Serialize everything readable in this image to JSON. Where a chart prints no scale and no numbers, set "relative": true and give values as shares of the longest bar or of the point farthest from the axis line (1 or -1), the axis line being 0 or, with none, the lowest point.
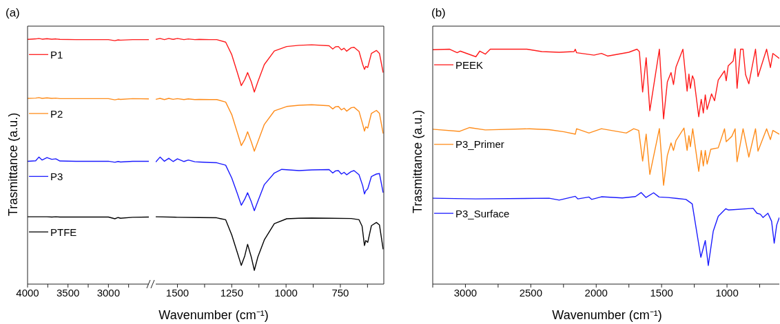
{
  "chart_data": [
    {
      "type": "line",
      "title": "(a)",
      "ylabel": "Trasmittance (a.u.)",
      "relative": true,
      "legend": "left",
      "xlim": [
        4000,
        2500
      ],
      "xticks": [
        4000,
        {
          "value": 3750,
          "label": null
        },
        3500,
        {
          "value": 3250,
          "label": null
        },
        3000,
        {
          "value": 2750,
          "label": null
        }
      ],
      "series": [
        {
          "name": "P1",
          "color": "#ff1a1a",
          "x": [
            4000,
            3900,
            3860,
            3820,
            3760,
            3700,
            3650,
            3600,
            3400,
            3200,
            3000,
            2920,
            2880,
            2850,
            2700,
            2500
          ],
          "values": [
            0.996,
            0.998,
            1.0,
            0.997,
            0.999,
            0.997,
            0.998,
            0.996,
            0.995,
            0.995,
            0.995,
            0.991,
            0.994,
            0.993,
            0.995,
            0.995
          ]
        },
        {
          "name": "P2",
          "color": "#ff8c1a",
          "x": [
            4000,
            3900,
            3860,
            3820,
            3760,
            3700,
            3650,
            3600,
            3400,
            3200,
            3000,
            2920,
            2880,
            2850,
            2700,
            2500
          ],
          "values": [
            0.756,
            0.757,
            0.759,
            0.756,
            0.758,
            0.756,
            0.757,
            0.755,
            0.755,
            0.755,
            0.755,
            0.75,
            0.753,
            0.752,
            0.755,
            0.754
          ]
        },
        {
          "name": "P3",
          "color": "#1a1aff",
          "x": [
            4000,
            3900,
            3860,
            3820,
            3760,
            3700,
            3650,
            3600,
            3400,
            3200,
            3000,
            2920,
            2880,
            2850,
            2700,
            2500
          ],
          "values": [
            0.5,
            0.502,
            0.517,
            0.505,
            0.515,
            0.508,
            0.51,
            0.501,
            0.5,
            0.5,
            0.5,
            0.496,
            0.499,
            0.497,
            0.5,
            0.5
          ]
        },
        {
          "name": "PTFE",
          "color": "#000000",
          "x": [
            4000,
            3900,
            3860,
            3820,
            3760,
            3700,
            3650,
            3600,
            3400,
            3200,
            3000,
            2920,
            2880,
            2850,
            2700,
            2500
          ],
          "values": [
            0.274,
            0.274,
            0.274,
            0.274,
            0.274,
            0.273,
            0.274,
            0.273,
            0.273,
            0.273,
            0.273,
            0.266,
            0.271,
            0.268,
            0.272,
            0.273
          ]
        }
      ]
    },
    {
      "type": "line",
      "xlabel": "Wavenumber (cm⁻¹)",
      "relative": true,
      "xlim": [
        1600,
        550
      ],
      "xticks": [
        1500,
        {
          "value": 1375,
          "label": null
        },
        1250,
        {
          "value": 1125,
          "label": null
        },
        1000,
        {
          "value": 875,
          "label": null
        },
        750,
        {
          "value": 625,
          "label": null
        }
      ],
      "series": [
        {
          "color": "#ff1a1a",
          "x": [
            1600,
            1580,
            1560,
            1540,
            1520,
            1500,
            1470,
            1450,
            1420,
            1400,
            1350,
            1319,
            1278,
            1250,
            1225,
            1206,
            1190,
            1177,
            1160,
            1146,
            1130,
            1100,
            1054,
            997,
            940,
            882,
            802,
            785,
            772,
            759,
            745,
            733,
            721,
            700,
            687,
            664,
            647,
            639,
            633,
            624,
            607,
            584,
            570,
            553
          ],
          "values": [
            0.996,
            1.0,
            0.995,
            1.0,
            0.996,
            1.0,
            0.995,
            0.998,
            0.995,
            0.996,
            0.995,
            0.995,
            0.985,
            0.934,
            0.863,
            0.808,
            0.833,
            0.861,
            0.823,
            0.782,
            0.823,
            0.894,
            0.949,
            0.967,
            0.972,
            0.974,
            0.97,
            0.957,
            0.966,
            0.967,
            0.953,
            0.96,
            0.948,
            0.962,
            0.964,
            0.947,
            0.894,
            0.874,
            0.886,
            0.882,
            0.939,
            0.951,
            0.939,
            0.861
          ]
        },
        {
          "color": "#ff8c1a",
          "x": [
            1600,
            1580,
            1560,
            1540,
            1520,
            1500,
            1470,
            1450,
            1420,
            1400,
            1350,
            1319,
            1278,
            1250,
            1225,
            1206,
            1190,
            1177,
            1160,
            1146,
            1130,
            1100,
            1054,
            997,
            940,
            882,
            802,
            785,
            772,
            759,
            745,
            733,
            721,
            700,
            687,
            664,
            647,
            639,
            633,
            624,
            607,
            584,
            570,
            553
          ],
          "values": [
            0.752,
            0.756,
            0.751,
            0.756,
            0.752,
            0.755,
            0.751,
            0.754,
            0.751,
            0.752,
            0.751,
            0.751,
            0.741,
            0.69,
            0.619,
            0.564,
            0.589,
            0.62,
            0.579,
            0.541,
            0.579,
            0.65,
            0.705,
            0.723,
            0.728,
            0.73,
            0.726,
            0.713,
            0.722,
            0.723,
            0.709,
            0.716,
            0.704,
            0.718,
            0.72,
            0.703,
            0.65,
            0.623,
            0.64,
            0.635,
            0.695,
            0.707,
            0.695,
            0.613
          ]
        },
        {
          "color": "#1a1aff",
          "x": [
            1600,
            1580,
            1560,
            1540,
            1520,
            1500,
            1470,
            1450,
            1420,
            1400,
            1350,
            1319,
            1278,
            1250,
            1225,
            1206,
            1190,
            1177,
            1160,
            1146,
            1130,
            1100,
            1054,
            1020,
            940,
            882,
            802,
            785,
            772,
            759,
            745,
            733,
            721,
            700,
            687,
            664,
            647,
            639,
            633,
            624,
            607,
            584,
            570,
            553
          ],
          "values": [
            0.497,
            0.517,
            0.5,
            0.512,
            0.499,
            0.51,
            0.499,
            0.505,
            0.498,
            0.497,
            0.495,
            0.494,
            0.484,
            0.432,
            0.37,
            0.321,
            0.346,
            0.372,
            0.335,
            0.299,
            0.337,
            0.405,
            0.452,
            0.467,
            0.462,
            0.465,
            0.466,
            0.452,
            0.461,
            0.462,
            0.448,
            0.455,
            0.445,
            0.458,
            0.462,
            0.445,
            0.4,
            0.367,
            0.38,
            0.388,
            0.438,
            0.448,
            0.45,
            0.372
          ]
        },
        {
          "color": "#000000",
          "x": [
            1600,
            1500,
            1400,
            1320,
            1300,
            1278,
            1250,
            1225,
            1206,
            1190,
            1177,
            1160,
            1146,
            1130,
            1100,
            1054,
            997,
            940,
            882,
            802,
            700,
            664,
            650,
            639,
            633,
            624,
            607,
            584,
            570,
            553
          ],
          "values": [
            0.274,
            0.272,
            0.271,
            0.27,
            0.266,
            0.262,
            0.2,
            0.13,
            0.076,
            0.115,
            0.162,
            0.11,
            0.056,
            0.11,
            0.18,
            0.246,
            0.266,
            0.268,
            0.269,
            0.268,
            0.267,
            0.262,
            0.236,
            0.157,
            0.177,
            0.17,
            0.238,
            0.251,
            0.241,
            0.142
          ]
        }
      ]
    },
    {
      "type": "line",
      "title": "(b)",
      "xlabel": "Wavenumber (cm⁻¹)",
      "ylabel": "Trasmittance (a.u.)",
      "relative": true,
      "legend": "left",
      "xlim": [
        3250,
        600
      ],
      "xticks": [
        {
          "value": 3250,
          "label": null
        },
        3000,
        {
          "value": 2750,
          "label": null
        },
        2500,
        {
          "value": 2250,
          "label": null
        },
        2000,
        {
          "value": 1750,
          "label": null
        },
        1500,
        {
          "value": 1250,
          "label": null
        },
        1000,
        {
          "value": 750,
          "label": null
        }
      ],
      "series": [
        {
          "name": "PEEK",
          "color": "#ff1a1a",
          "x": [
            3250,
            3120,
            3063,
            3040,
            2920,
            2890,
            2848,
            2810,
            2530,
            2416,
            2283,
            2169,
            2160,
            2150,
            2017,
            1960,
            1913,
            1751,
            1688,
            1670,
            1645,
            1618,
            1590,
            1517,
            1485,
            1456,
            1428,
            1409,
            1390,
            1337,
            1305,
            1291,
            1280,
            1264,
            1252,
            1216,
            1197,
            1181,
            1166,
            1152,
            1118,
            1095,
            1067,
            1019,
            1006,
            991,
            953,
            938,
            923,
            896,
            877,
            858,
            833,
            782,
            763,
            697,
            668,
            649,
            600
          ],
          "values": [
            0.996,
            0.998,
            0.983,
            0.99,
            0.966,
            0.99,
            0.977,
            0.998,
            0.998,
            0.988,
            0.985,
            0.988,
            0.998,
            0.983,
            0.973,
            0.98,
            0.969,
            0.985,
            0.998,
            0.988,
            0.816,
            0.962,
            0.737,
            0.998,
            0.702,
            0.859,
            0.899,
            0.848,
            0.922,
            0.998,
            0.82,
            0.892,
            0.832,
            0.885,
            0.869,
            0.711,
            0.785,
            0.727,
            0.804,
            0.742,
            0.808,
            0.779,
            0.867,
            0.906,
            0.864,
            0.927,
            0.948,
            1.0,
            0.832,
            0.998,
            0.998,
            0.89,
            0.851,
            0.998,
            0.882,
            0.998,
            0.92,
            0.98,
            0.959
          ]
        },
        {
          "name": "P3_Primer",
          "color": "#ff8c1a",
          "x": [
            3250,
            3044,
            2968,
            2848,
            2510,
            2360,
            2245,
            2160,
            2150,
            2055,
            1960,
            1770,
            1713,
            1675,
            1645,
            1618,
            1590,
            1517,
            1485,
            1456,
            1428,
            1409,
            1390,
            1329,
            1305,
            1291,
            1280,
            1262,
            1216,
            1197,
            1181,
            1166,
            1152,
            1124,
            1067,
            1019,
            1006,
            963,
            938,
            923,
            877,
            833,
            782,
            763,
            697,
            668,
            649,
            600
          ],
          "values": [
            0.658,
            0.649,
            0.665,
            0.655,
            0.66,
            0.656,
            0.647,
            0.637,
            0.66,
            0.642,
            0.66,
            0.642,
            0.66,
            0.653,
            0.523,
            0.637,
            0.466,
            0.661,
            0.42,
            0.547,
            0.6,
            0.568,
            0.61,
            0.663,
            0.568,
            0.631,
            0.584,
            0.66,
            0.479,
            0.568,
            0.502,
            0.568,
            0.51,
            0.573,
            0.579,
            0.66,
            0.605,
            0.628,
            0.66,
            0.52,
            0.66,
            0.54,
            0.66,
            0.565,
            0.66,
            0.614,
            0.653,
            0.637
          ]
        },
        {
          "name": "P3_Surface",
          "color": "#1a1aff",
          "x": [
            3250,
            2920,
            2360,
            2283,
            2160,
            2140,
            2055,
            2035,
            1960,
            1800,
            1700,
            1656,
            1620,
            1561,
            1520,
            1450,
            1380,
            1314,
            1266,
            1200,
            1166,
            1143,
            1105,
            1067,
            1010,
            990,
            800,
            771,
            745,
            725,
            687,
            659,
            639,
            620,
            600
          ],
          "values": [
            0.365,
            0.362,
            0.365,
            0.357,
            0.373,
            0.362,
            0.37,
            0.36,
            0.371,
            0.366,
            0.372,
            0.389,
            0.368,
            0.388,
            0.37,
            0.368,
            0.364,
            0.36,
            0.341,
            0.114,
            0.185,
            0.079,
            0.225,
            0.288,
            0.32,
            0.315,
            0.322,
            0.301,
            0.297,
            0.283,
            0.301,
            0.267,
            0.174,
            0.251,
            0.283
          ]
        }
      ]
    }
  ]
}
